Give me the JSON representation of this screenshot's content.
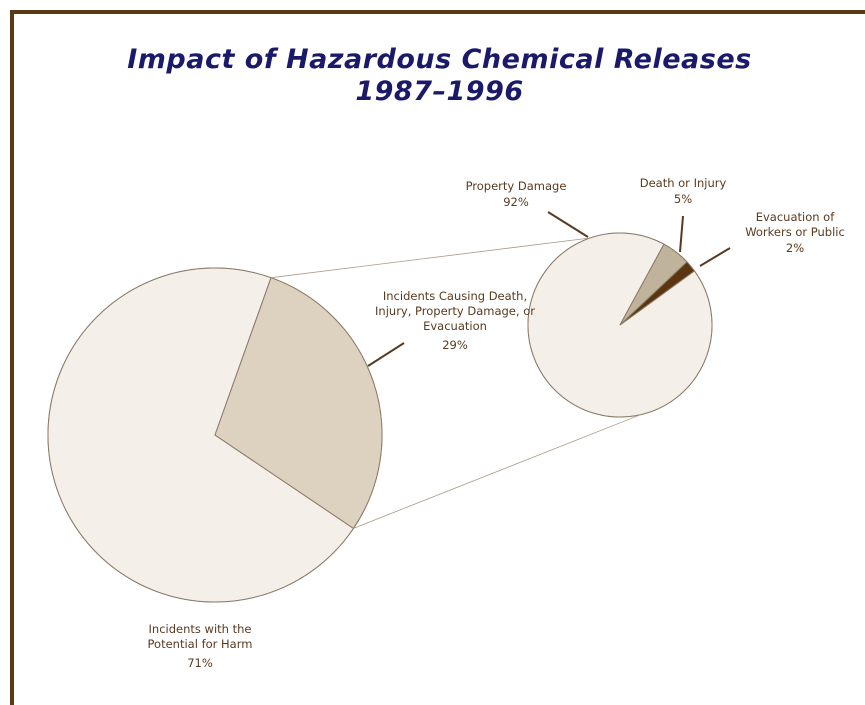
{
  "chart_data": [
    {
      "type": "pie",
      "title": "Impact of Hazardous Chemical Releases",
      "subtitle": "1987–1996",
      "categories": [
        "Incidents with the Potential for Harm",
        "Incidents Causing Death, Injury, Property Damage, or Evacuation"
      ],
      "values": [
        71,
        29
      ],
      "value_labels": [
        "71%",
        "29%"
      ],
      "colors": [
        "#f4f0e9",
        "#dcd2bf"
      ]
    },
    {
      "type": "pie",
      "categories": [
        "Property Damage",
        "Death or Injury",
        "Evacuation of Workers or Public"
      ],
      "values": [
        92,
        5,
        2
      ],
      "value_labels": [
        "92%",
        "5%",
        "2%"
      ],
      "colors": [
        "#f4f0e9",
        "#bfb39c",
        "#5a3510"
      ]
    }
  ]
}
